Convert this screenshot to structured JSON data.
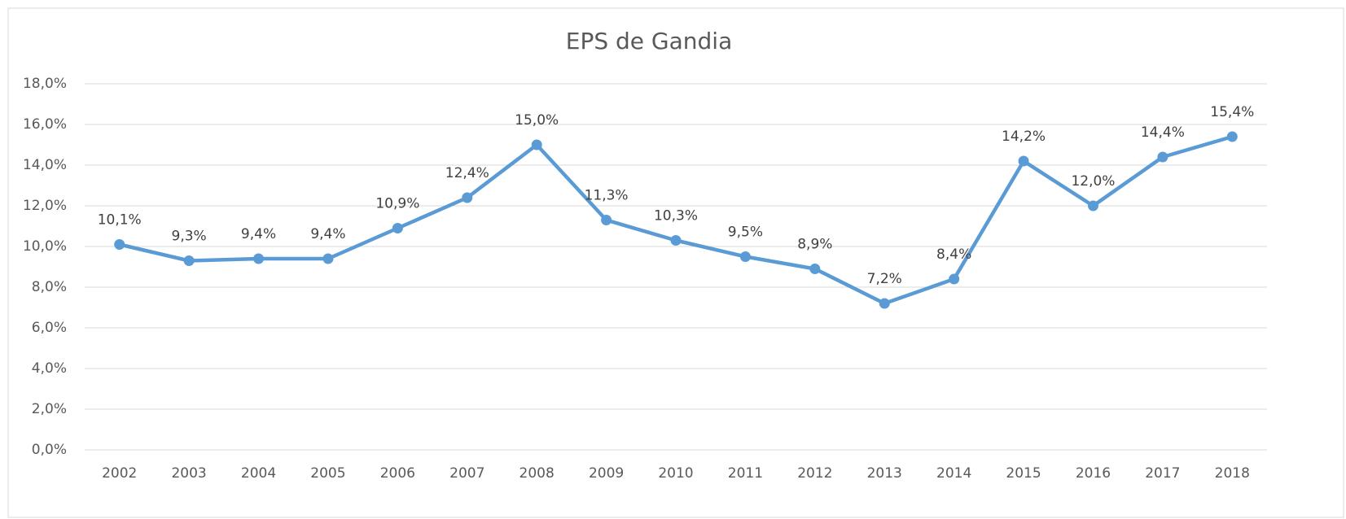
{
  "chart_data": {
    "type": "line",
    "title": "EPS de Gandia",
    "categories": [
      "2002",
      "2003",
      "2004",
      "2005",
      "2006",
      "2007",
      "2008",
      "2009",
      "2010",
      "2011",
      "2012",
      "2013",
      "2014",
      "2015",
      "2016",
      "2017",
      "2018"
    ],
    "series": [
      {
        "name": "EPS de Gandia",
        "color": "#5b9bd5",
        "values": [
          10.1,
          9.3,
          9.4,
          9.4,
          10.9,
          12.4,
          15.0,
          11.3,
          10.3,
          9.5,
          8.9,
          7.2,
          8.4,
          14.2,
          12.0,
          14.4,
          15.4
        ],
        "value_labels": [
          "10,1%",
          "9,3%",
          "9,4%",
          "9,4%",
          "10,9%",
          "12,4%",
          "15,0%",
          "11,3%",
          "10,3%",
          "9,5%",
          "8,9%",
          "7,2%",
          "8,4%",
          "14,2%",
          "12,0%",
          "14,4%",
          "15,4%"
        ]
      }
    ],
    "ylim": [
      0,
      18
    ],
    "yticks": [
      {
        "value": 0,
        "label": "0,0%"
      },
      {
        "value": 2,
        "label": "2,0%"
      },
      {
        "value": 4,
        "label": "4,0%"
      },
      {
        "value": 6,
        "label": "6,0%"
      },
      {
        "value": 8,
        "label": "8,0%"
      },
      {
        "value": 10,
        "label": "10,0%"
      },
      {
        "value": 12,
        "label": "12,0%"
      },
      {
        "value": 14,
        "label": "14,0%"
      },
      {
        "value": 16,
        "label": "16,0%"
      },
      {
        "value": 18,
        "label": "18,0%"
      }
    ],
    "grid": true
  }
}
